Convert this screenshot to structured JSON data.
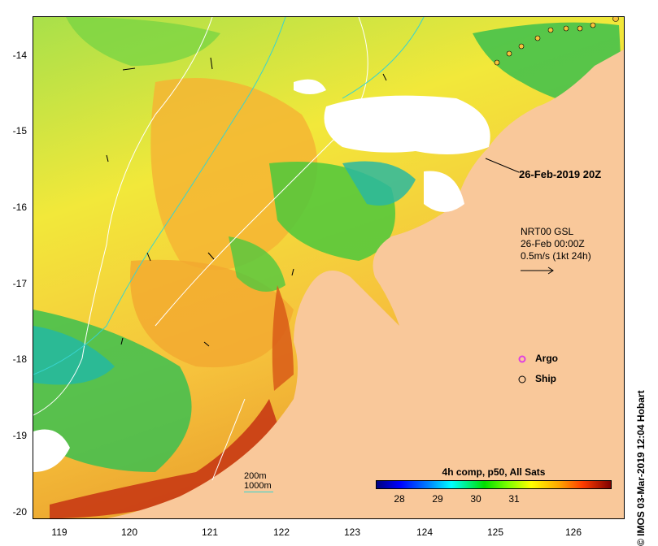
{
  "map": {
    "lat_ticks": [
      "-14",
      "-15",
      "-16",
      "-17",
      "-18",
      "-19",
      "-20"
    ],
    "lon_ticks": [
      "119",
      "120",
      "121",
      "122",
      "123",
      "124",
      "125",
      "126"
    ],
    "valid_time": "26-Feb-2019 20Z",
    "vector_lines": [
      "NRT00 GSL",
      "26-Feb 00:00Z",
      "0.5m/s (1kt 24h)"
    ],
    "legend": {
      "argo": "Argo",
      "ship": "Ship"
    },
    "depth_legend": [
      "200m",
      "1000m"
    ],
    "colorbar": {
      "title": "4h comp, p50, All Sats",
      "ticks": [
        "28",
        "29",
        "30",
        "31"
      ]
    },
    "credit": "© IMOS 03-Mar-2019 12:04 Hobart",
    "colors": {
      "land": "#f9c89a",
      "cloud": "#ffffff",
      "isobath_200m": "#ffffff",
      "isobath_1000m": "#38d4cf",
      "argo": "#e040e0"
    }
  }
}
